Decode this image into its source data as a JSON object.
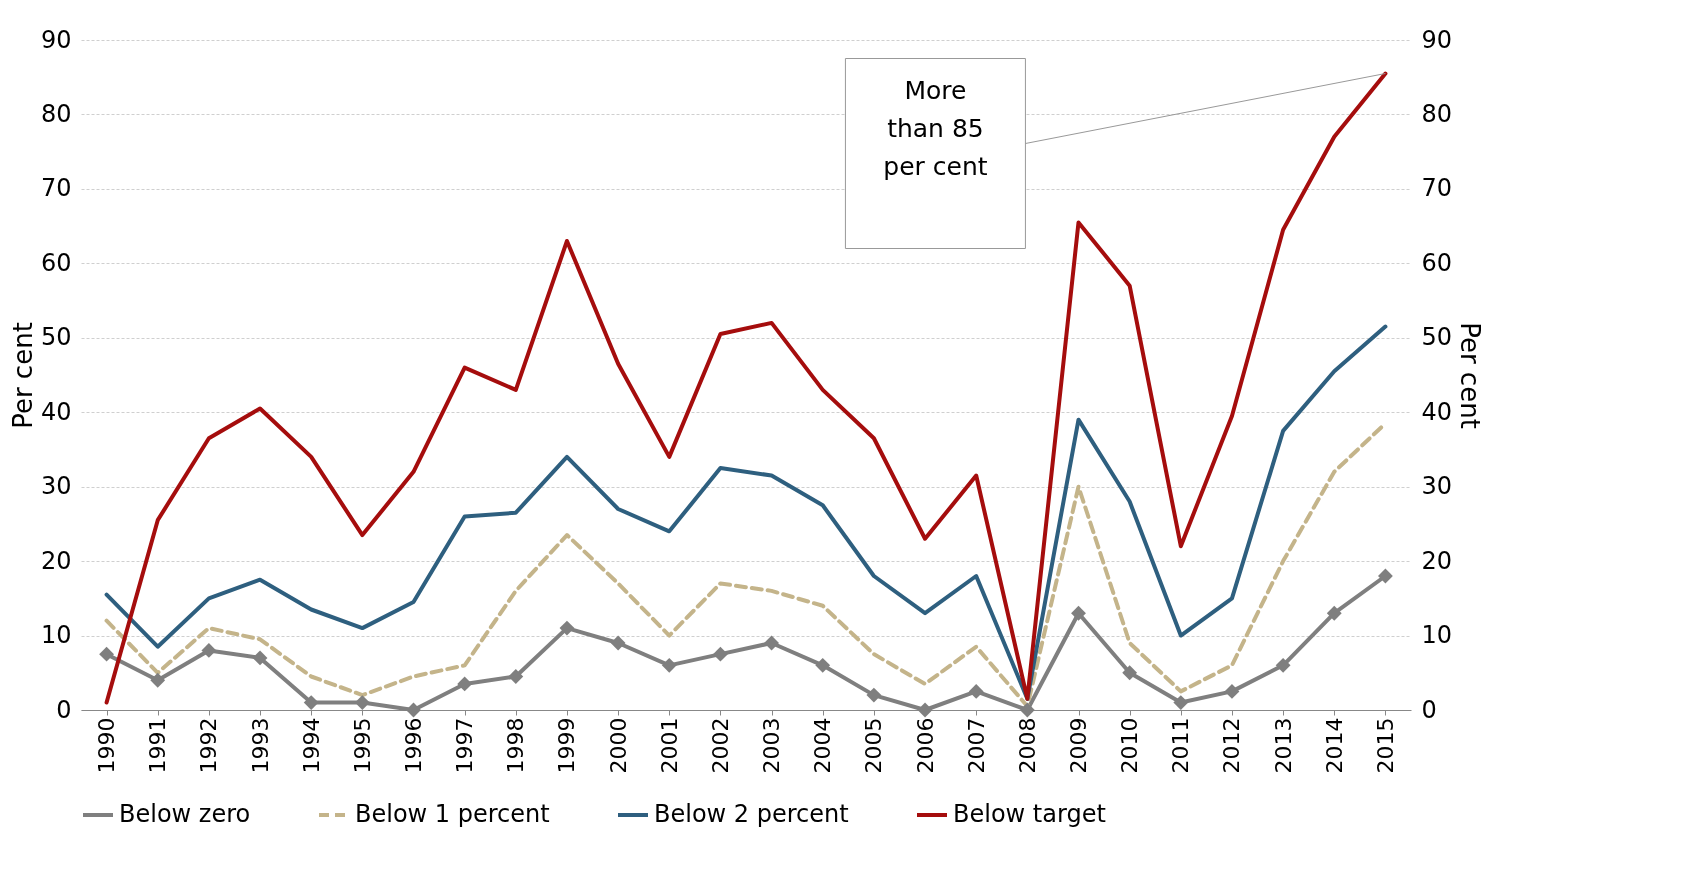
{
  "chart_data": {
    "type": "line",
    "ylabel": "Per cent",
    "y2label": "Per cent",
    "categories": [
      "1990",
      "1991",
      "1992",
      "1993",
      "1994",
      "1995",
      "1996",
      "1997",
      "1998",
      "1999",
      "2000",
      "2001",
      "2002",
      "2003",
      "2004",
      "2005",
      "2006",
      "2007",
      "2008",
      "2009",
      "2010",
      "2011",
      "2012",
      "2013",
      "2014",
      "2015"
    ],
    "series": [
      {
        "name": "Below zero",
        "color": "#7f7f7f",
        "marker": "diamond",
        "line_style": "solid",
        "values": [
          7.5,
          4,
          8,
          7,
          1,
          1,
          0,
          3.5,
          4.5,
          11,
          9,
          6,
          7.5,
          9,
          6,
          2,
          0,
          2.5,
          0,
          13,
          5,
          1,
          2.5,
          6,
          13,
          18
        ]
      },
      {
        "name": "Below 1 percent",
        "color": "#c4b48a",
        "marker": "none",
        "line_style": "dashed",
        "values": [
          12,
          5,
          11,
          9.5,
          4.5,
          2,
          4.5,
          6,
          16,
          23.5,
          17,
          10,
          17,
          16,
          14,
          7.5,
          3.5,
          8.5,
          0.5,
          30,
          9,
          2.5,
          6,
          20,
          32,
          38.5
        ]
      },
      {
        "name": "Below 2 percent",
        "color": "#2e5f7f",
        "marker": "none",
        "line_style": "solid",
        "values": [
          15.5,
          8.5,
          15,
          17.5,
          13.5,
          11,
          14.5,
          26,
          26.5,
          34,
          27,
          24,
          32.5,
          31.5,
          27.5,
          18,
          13,
          18,
          1.5,
          39,
          28,
          10,
          15,
          37.5,
          45.5,
          51.5
        ]
      },
      {
        "name": "Below target",
        "color": "#a50d0d",
        "marker": "none",
        "line_style": "solid",
        "values": [
          1,
          25.5,
          36.5,
          40.5,
          34,
          23.5,
          32,
          46,
          43,
          63,
          46.5,
          34,
          50.5,
          52,
          43,
          36.5,
          23,
          31.5,
          1.5,
          65.5,
          57,
          22,
          39.5,
          64.5,
          77,
          85.5
        ]
      }
    ],
    "ylim": [
      0,
      90
    ],
    "yticks": [
      0,
      10,
      20,
      30,
      40,
      50,
      60,
      70,
      80,
      90
    ],
    "y2lim": [
      0,
      90
    ],
    "y2ticks": [
      0,
      10,
      20,
      30,
      40,
      50,
      60,
      70,
      80,
      90
    ],
    "grid": "y",
    "legend": "bottom",
    "annotations": [
      "More than 85 per cent"
    ]
  }
}
